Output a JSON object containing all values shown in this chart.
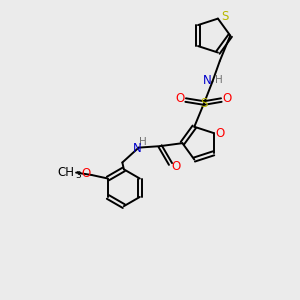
{
  "background_color": "#ebebeb",
  "bond_color": "#000000",
  "colors": {
    "S": "#b8b800",
    "O": "#ff0000",
    "N": "#0000cc",
    "C": "#000000",
    "H": "#707070"
  },
  "figsize": [
    3.0,
    3.0
  ],
  "dpi": 100
}
